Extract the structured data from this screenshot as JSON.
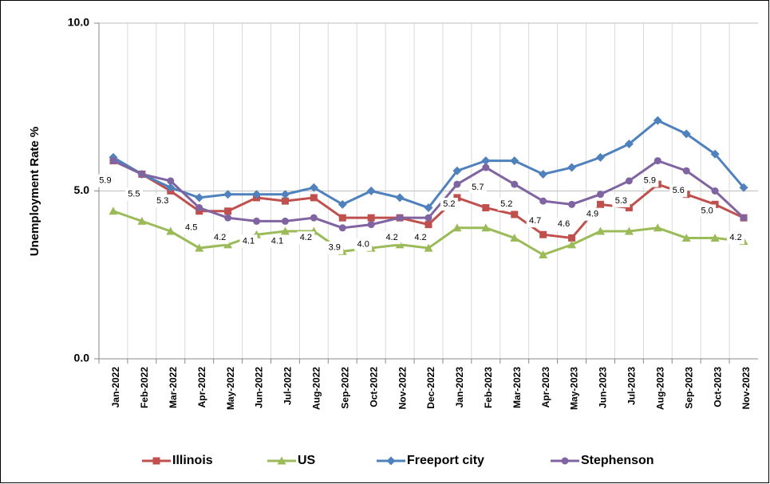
{
  "chart_data": {
    "type": "line",
    "y_label": "Unemployment Rate %",
    "categories": [
      "Jan-2022",
      "Feb-2022",
      "Mar-2022",
      "Apr-2022",
      "May-2022",
      "Jun-2022",
      "Jul-2022",
      "Aug-2022",
      "Sep-2022",
      "Oct-2022",
      "Nov-2022",
      "Dec-2022",
      "Jan-2023",
      "Feb-2023",
      "Mar-2023",
      "Apr-2023",
      "May-2023",
      "Jun-2023",
      "Jul-2023",
      "Aug-2023",
      "Sep-2023",
      "Oct-2023",
      "Nov-2023"
    ],
    "series": [
      {
        "name": "Illinois",
        "color": "#c0504d",
        "marker": "square",
        "values": [
          5.9,
          5.5,
          5.0,
          4.4,
          4.4,
          4.8,
          4.7,
          4.8,
          4.2,
          4.2,
          4.2,
          4.0,
          4.8,
          4.5,
          4.3,
          3.7,
          3.6,
          4.6,
          4.5,
          5.2,
          4.9,
          4.6,
          4.2
        ]
      },
      {
        "name": "US",
        "color": "#9bbb59",
        "marker": "triangle",
        "values": [
          4.4,
          4.1,
          3.8,
          3.3,
          3.4,
          3.7,
          3.8,
          3.8,
          3.2,
          3.3,
          3.4,
          3.3,
          3.9,
          3.9,
          3.6,
          3.1,
          3.4,
          3.8,
          3.8,
          3.9,
          3.6,
          3.6,
          3.5
        ]
      },
      {
        "name": "Freeport city",
        "color": "#4f81bd",
        "marker": "diamond",
        "values": [
          6.0,
          5.5,
          5.1,
          4.8,
          4.9,
          4.9,
          4.9,
          5.1,
          4.6,
          5.0,
          4.8,
          4.5,
          5.6,
          5.9,
          5.9,
          5.5,
          5.7,
          6.0,
          6.4,
          7.1,
          6.7,
          6.1,
          5.1
        ]
      },
      {
        "name": "Stephenson",
        "color": "#8064a2",
        "marker": "circle",
        "values": [
          5.9,
          5.5,
          5.3,
          4.5,
          4.2,
          4.1,
          4.1,
          4.2,
          3.9,
          4.0,
          4.2,
          4.2,
          5.2,
          5.7,
          5.2,
          4.7,
          4.6,
          4.9,
          5.3,
          5.9,
          5.6,
          5.0,
          4.2
        ],
        "value_labels": [
          "5.9",
          "5.5",
          "5.3",
          "4.5",
          "4.2",
          "4.1",
          "4.1",
          "4.2",
          "3.9",
          "4.0",
          "4.2",
          "4.2",
          "5.2",
          "5.7",
          "5.2",
          "4.7",
          "4.6",
          "4.9",
          "5.3",
          "5.9",
          "5.6",
          "5.0",
          "4.2"
        ]
      }
    ],
    "ylim": [
      0,
      10
    ],
    "yticks": [
      {
        "value": 0,
        "label": "0.0"
      },
      {
        "value": 5,
        "label": "5.0"
      },
      {
        "value": 10,
        "label": "10.0"
      }
    ],
    "grid": true,
    "legend": "bottom"
  }
}
